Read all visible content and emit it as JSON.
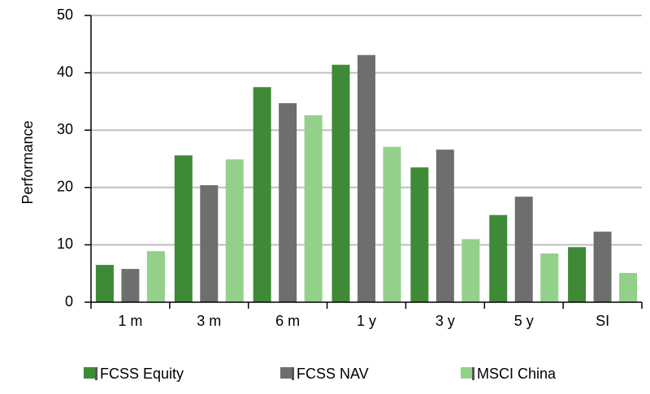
{
  "chart_data": {
    "type": "bar",
    "ylabel": "Performance",
    "categories": [
      "1 m",
      "3 m",
      "6 m",
      "1 y",
      "3 y",
      "5 y",
      "SI"
    ],
    "series": [
      {
        "name": "FCSS Equity",
        "color": "#3f8a37",
        "values": [
          6.5,
          25.6,
          37.5,
          41.4,
          23.5,
          15.2,
          9.6
        ]
      },
      {
        "name": "FCSS NAV",
        "color": "#6e6e6e",
        "values": [
          5.8,
          20.4,
          34.7,
          43.1,
          26.6,
          18.4,
          12.3
        ]
      },
      {
        "name": "MSCI China",
        "color": "#93d18a",
        "values": [
          8.9,
          24.9,
          32.6,
          27.1,
          11.0,
          8.5,
          5.1
        ]
      }
    ],
    "ylim": [
      0,
      50
    ],
    "yticks": [
      0,
      10,
      20,
      30,
      40,
      50
    ],
    "grid": true
  }
}
